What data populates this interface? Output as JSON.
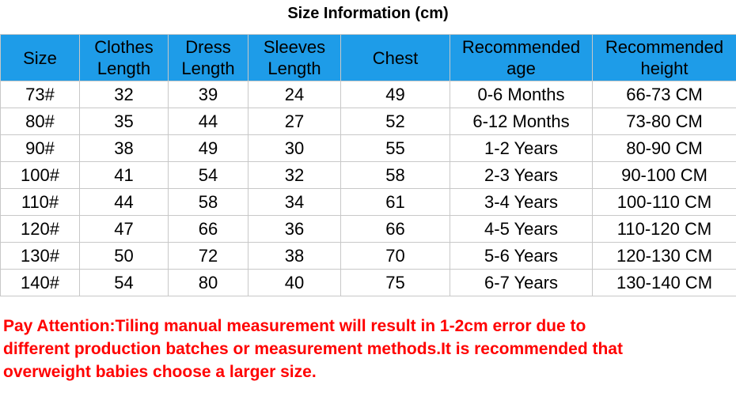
{
  "header": {
    "title": "Size Information (cm)"
  },
  "table": {
    "columns": [
      [
        "Size"
      ],
      [
        "Clothes",
        "Length"
      ],
      [
        "Dress",
        "Length"
      ],
      [
        "Sleeves",
        "Length"
      ],
      [
        "Chest"
      ],
      [
        "Recommended",
        "age"
      ],
      [
        "Recommended",
        "height"
      ]
    ],
    "rows": [
      [
        "73#",
        "32",
        "39",
        "24",
        "49",
        "0-6 Months",
        "66-73 CM"
      ],
      [
        "80#",
        "35",
        "44",
        "27",
        "52",
        "6-12 Months",
        "73-80 CM"
      ],
      [
        "90#",
        "38",
        "49",
        "30",
        "55",
        "1-2 Years",
        "80-90 CM"
      ],
      [
        "100#",
        "41",
        "54",
        "32",
        "58",
        "2-3 Years",
        "90-100 CM"
      ],
      [
        "110#",
        "44",
        "58",
        "34",
        "61",
        "3-4 Years",
        "100-110 CM"
      ],
      [
        "120#",
        "47",
        "66",
        "36",
        "66",
        "4-5 Years",
        "110-120 CM"
      ],
      [
        "130#",
        "50",
        "72",
        "38",
        "70",
        "5-6 Years",
        "120-130 CM"
      ],
      [
        "140#",
        "54",
        "80",
        "40",
        "75",
        "6-7 Years",
        "130-140 CM"
      ]
    ]
  },
  "note": {
    "lines": [
      "Pay Attention:Tiling manual measurement will result in 1-2cm error due to",
      "different production batches or measurement methods.It is recommended that",
      "overweight babies choose a larger size."
    ]
  }
}
